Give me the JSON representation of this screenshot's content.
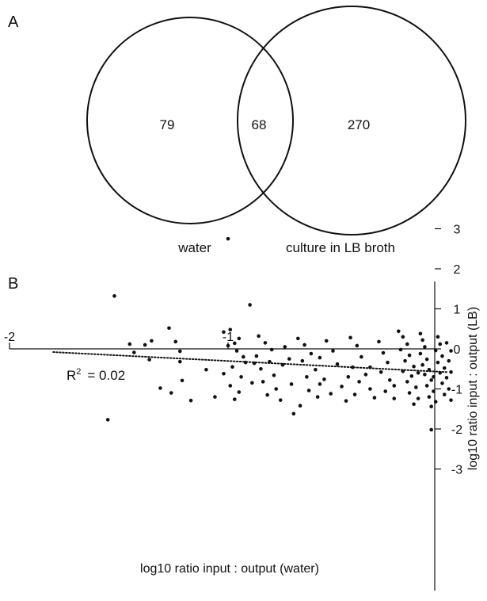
{
  "venn": {
    "panel_label": "A",
    "left_only": "79",
    "overlap": "68",
    "right_only": "270",
    "left_label": "water",
    "right_label": "culture in LB broth"
  },
  "scatter": {
    "panel_label": "B",
    "r2_base": "R",
    "r2_sup": "2",
    "r2_value": "= 0.02"
  },
  "chart_data": {
    "type": "scatter",
    "xlabel": "log10 ratio input : output (water)",
    "ylabel": "log10 ratio input : output (LB)",
    "xlim": [
      -2,
      0.05
    ],
    "ylim": [
      -3,
      3
    ],
    "x_ticks": [
      -2,
      -1
    ],
    "y_ticks": [
      -3,
      -2,
      -1,
      0,
      1,
      2,
      3
    ],
    "annotation": "R² = 0.02",
    "trendline": {
      "style": "dotted",
      "from": [
        -1.8,
        -0.08
      ],
      "to": [
        0,
        -0.58
      ]
    },
    "points": [
      [
        -1.0,
        2.75
      ],
      [
        -1.52,
        1.32
      ],
      [
        -0.9,
        1.1
      ],
      [
        -1.55,
        -1.77
      ],
      [
        -0.07,
        -2.02
      ],
      [
        -1.27,
        0.52
      ],
      [
        -1.35,
        0.2
      ],
      [
        -1.38,
        0.1
      ],
      [
        -1.45,
        0.12
      ],
      [
        -1.43,
        -0.09
      ],
      [
        -1.36,
        -0.27
      ],
      [
        -1.24,
        0.18
      ],
      [
        -1.22,
        -0.06
      ],
      [
        -1.31,
        -0.98
      ],
      [
        -1.26,
        -1.1
      ],
      [
        -1.21,
        -0.79
      ],
      [
        -1.17,
        -1.29
      ],
      [
        -1.06,
        -1.2
      ],
      [
        -1.22,
        -0.32
      ],
      [
        -1.02,
        0.42
      ],
      [
        -0.99,
        0.48
      ],
      [
        -0.95,
        0.26
      ],
      [
        -0.97,
        0.14
      ],
      [
        -1.0,
        0.08
      ],
      [
        -0.96,
        -0.05
      ],
      [
        -0.93,
        -0.2
      ],
      [
        -0.98,
        -0.45
      ],
      [
        -0.94,
        -0.7
      ],
      [
        -0.99,
        -0.92
      ],
      [
        -0.95,
        -1.08
      ],
      [
        -0.97,
        -1.26
      ],
      [
        -0.92,
        -0.34
      ],
      [
        -0.89,
        -0.85
      ],
      [
        -1.02,
        -0.62
      ],
      [
        -0.86,
        0.32
      ],
      [
        -0.83,
        0.15
      ],
      [
        -0.8,
        -0.02
      ],
      [
        -0.87,
        -0.18
      ],
      [
        -0.81,
        -0.32
      ],
      [
        -0.85,
        -0.5
      ],
      [
        -0.79,
        -0.66
      ],
      [
        -0.84,
        -0.82
      ],
      [
        -0.78,
        -1.0
      ],
      [
        -0.82,
        -1.15
      ],
      [
        -0.76,
        -1.28
      ],
      [
        -0.74,
        0.05
      ],
      [
        -0.72,
        -0.25
      ],
      [
        -0.75,
        -0.4
      ],
      [
        -0.68,
        0.26
      ],
      [
        -0.65,
        0.1
      ],
      [
        -0.62,
        -0.12
      ],
      [
        -0.66,
        -0.3
      ],
      [
        -0.6,
        -0.52
      ],
      [
        -0.64,
        -0.7
      ],
      [
        -0.58,
        -0.88
      ],
      [
        -0.63,
        -1.04
      ],
      [
        -0.59,
        -1.2
      ],
      [
        -0.67,
        -1.42
      ],
      [
        -0.7,
        -1.62
      ],
      [
        -0.55,
        0.2
      ],
      [
        -0.52,
        -0.05
      ],
      [
        -0.5,
        -0.38
      ],
      [
        -0.56,
        -0.76
      ],
      [
        -0.48,
        -0.94
      ],
      [
        -0.53,
        -1.12
      ],
      [
        -0.46,
        -1.3
      ],
      [
        -0.44,
        0.28
      ],
      [
        -0.41,
        0.08
      ],
      [
        -0.39,
        -0.2
      ],
      [
        -0.43,
        -0.46
      ],
      [
        -0.37,
        -0.64
      ],
      [
        -0.4,
        -0.82
      ],
      [
        -0.35,
        -1.0
      ],
      [
        -0.42,
        -1.14
      ],
      [
        -0.33,
        -1.22
      ],
      [
        -0.31,
        0.18
      ],
      [
        -0.29,
        -0.1
      ],
      [
        -0.27,
        -0.34
      ],
      [
        -0.3,
        -0.58
      ],
      [
        -0.26,
        -0.78
      ],
      [
        -0.28,
        -1.06
      ],
      [
        -0.24,
        -1.24
      ],
      [
        -0.22,
        0.44
      ],
      [
        -0.2,
        0.3
      ],
      [
        -0.18,
        0.12
      ],
      [
        -0.21,
        -0.02
      ],
      [
        -0.17,
        -0.16
      ],
      [
        -0.19,
        -0.3
      ],
      [
        -0.15,
        -0.44
      ],
      [
        -0.2,
        -0.56
      ],
      [
        -0.16,
        -0.68
      ],
      [
        -0.18,
        -0.82
      ],
      [
        -0.14,
        -0.96
      ],
      [
        -0.17,
        -1.1
      ],
      [
        -0.13,
        -1.24
      ],
      [
        -0.15,
        -1.38
      ],
      [
        -0.12,
        0.38
      ],
      [
        -0.11,
        0.22
      ],
      [
        -0.1,
        0.05
      ],
      [
        -0.12,
        -0.12
      ],
      [
        -0.09,
        -0.26
      ],
      [
        -0.11,
        -0.4
      ],
      [
        -0.08,
        -0.52
      ],
      [
        -0.1,
        -0.64
      ],
      [
        -0.07,
        -0.78
      ],
      [
        -0.09,
        -0.92
      ],
      [
        -0.06,
        -1.06
      ],
      [
        -0.08,
        -1.2
      ],
      [
        -0.05,
        -1.32
      ],
      [
        -0.07,
        -1.44
      ],
      [
        -0.04,
        0.3
      ],
      [
        -0.03,
        0.12
      ],
      [
        -0.05,
        -0.04
      ],
      [
        -0.02,
        -0.18
      ],
      [
        -0.04,
        -0.34
      ],
      [
        -0.01,
        -0.48
      ],
      [
        -0.03,
        -0.6
      ],
      [
        0.0,
        -0.72
      ],
      [
        -0.02,
        -0.86
      ],
      [
        0.01,
        -1.0
      ],
      [
        -0.01,
        -1.14
      ],
      [
        0.02,
        -1.28
      ],
      [
        0.0,
        0.15
      ],
      [
        0.02,
        -0.05
      ],
      [
        0.01,
        -0.3
      ],
      [
        0.02,
        -0.58
      ],
      [
        -0.06,
        -0.7
      ],
      [
        -0.13,
        -0.6
      ],
      [
        -0.24,
        -0.92
      ],
      [
        -0.35,
        -0.46
      ],
      [
        -0.45,
        -0.7
      ],
      [
        -0.58,
        -0.22
      ],
      [
        -0.71,
        -0.88
      ],
      [
        -0.88,
        -0.36
      ],
      [
        -1.1,
        -0.52
      ]
    ]
  }
}
